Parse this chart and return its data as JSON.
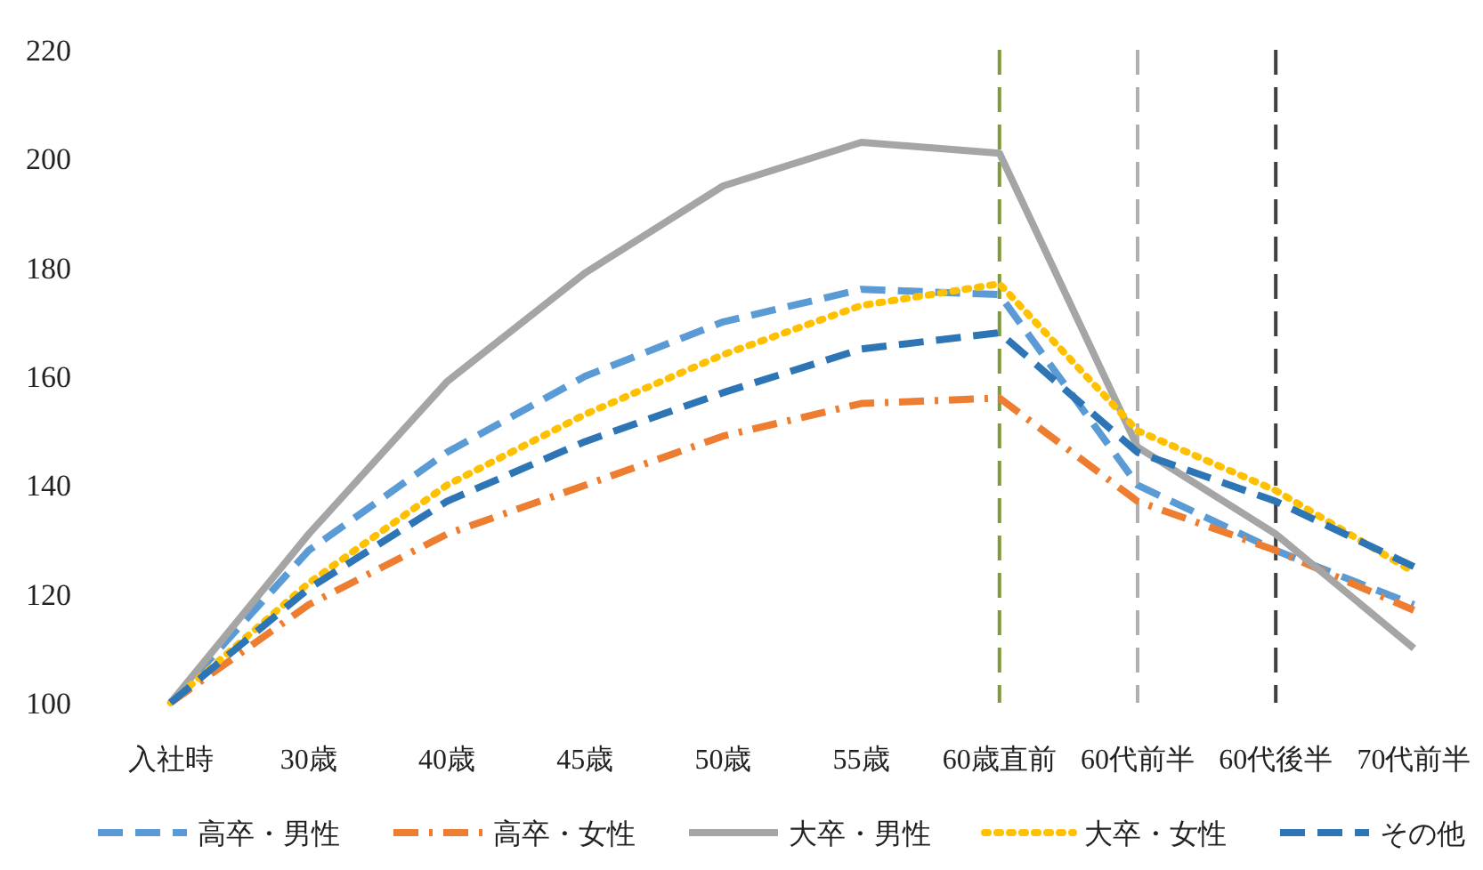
{
  "chart_data": {
    "type": "line",
    "categories": [
      "入社時",
      "30歳",
      "40歳",
      "45歳",
      "50歳",
      "55歳",
      "60歳直前",
      "60代前半",
      "60代後半",
      "70代前半"
    ],
    "series": [
      {
        "name": "高卒・男性",
        "color": "#5b9bd5",
        "line_style": "dashed",
        "values": [
          100,
          128,
          146,
          160,
          170,
          176,
          175,
          140,
          128,
          118
        ]
      },
      {
        "name": "高卒・女性",
        "color": "#ed7d31",
        "line_style": "dashdot",
        "values": [
          100,
          118,
          131,
          140,
          149,
          155,
          156,
          137,
          128,
          117
        ]
      },
      {
        "name": "大卒・男性",
        "color": "#a5a5a5",
        "line_style": "solid",
        "values": [
          100,
          131,
          159,
          179,
          195,
          203,
          201,
          147,
          131,
          110
        ]
      },
      {
        "name": "大卒・女性",
        "color": "#ffc000",
        "line_style": "dotted",
        "values": [
          100,
          122,
          140,
          153,
          164,
          173,
          177,
          150,
          139,
          124
        ]
      },
      {
        "name": "その他",
        "color": "#2e75b6",
        "line_style": "dashed",
        "values": [
          100,
          121,
          137,
          148,
          157,
          165,
          168,
          146,
          137,
          125
        ]
      }
    ],
    "ylim": [
      100,
      220
    ],
    "yticks": [
      100,
      120,
      140,
      160,
      180,
      200,
      220
    ],
    "ref_lines": [
      {
        "axis": "x",
        "value": "60歳直前",
        "color": "#7f9a3c",
        "line_style": "dashed"
      },
      {
        "axis": "x",
        "value": "60代前半",
        "color": "#b0b0b0",
        "line_style": "dashed"
      },
      {
        "axis": "x",
        "value": "60代後半",
        "color": "#404040",
        "line_style": "dashed"
      }
    ],
    "grid": false,
    "legend": "bottom",
    "marker": "none"
  }
}
